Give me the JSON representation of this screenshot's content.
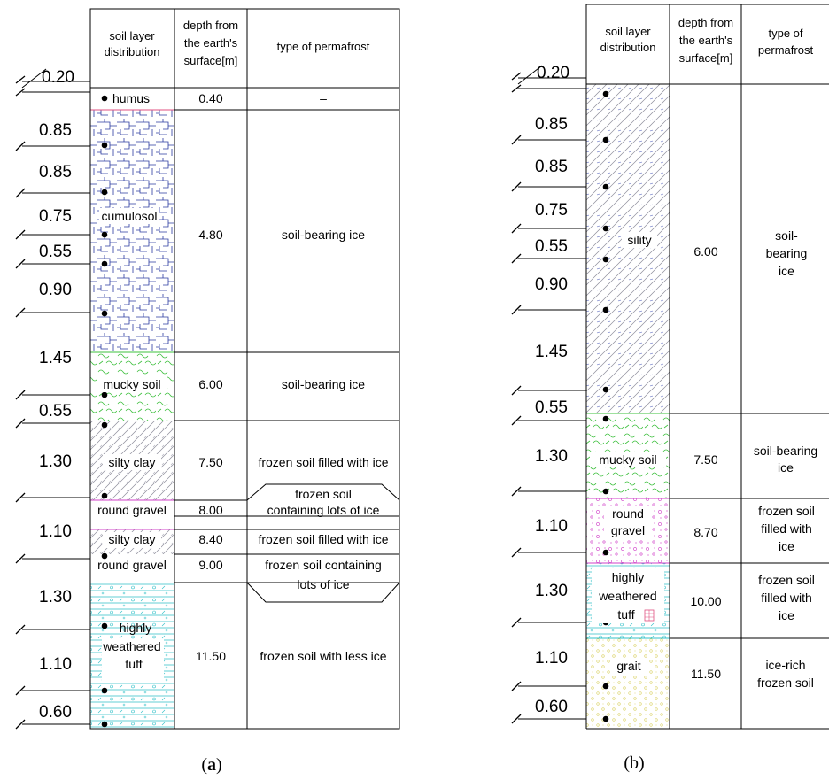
{
  "panel_a": {
    "caption_open": "(",
    "caption_letter": "a",
    "caption_close": ")",
    "headers": {
      "soil_line1": "soil layer",
      "soil_line2": "distribution",
      "depth_line1": "depth from",
      "depth_line2": "the earth's",
      "depth_line3": "surface[m]",
      "type": "type of permafrost"
    },
    "thicknesses": [
      "0.20",
      "0.85",
      "0.85",
      "0.75",
      "0.55",
      "0.90",
      "1.45",
      "0.55",
      "1.30",
      "1.10",
      "1.30",
      "1.10",
      "0.60"
    ],
    "layers": [
      {
        "name": "humus",
        "depth": "0.40",
        "type": "–"
      },
      {
        "name": "cumulosol",
        "depth": "4.80",
        "type": "soil-bearing ice"
      },
      {
        "name": "mucky soil",
        "depth": "6.00",
        "type": "soil-bearing ice"
      },
      {
        "name": "silty clay",
        "depth": "7.50",
        "type": "frozen soil filled with ice"
      },
      {
        "name": "round gravel",
        "depth": "8.00",
        "type_line1": "frozen soil",
        "type_line2": "containing lots of ice"
      },
      {
        "name": "silty clay",
        "depth": "8.40",
        "type": "frozen soil filled with ice"
      },
      {
        "name": "round gravel",
        "depth": "9.00",
        "type_line1": "frozen soil containing",
        "type_line2": "lots of ice"
      },
      {
        "name_line1": "highly",
        "name_line2": "weathered",
        "name_line3": "tuff",
        "depth": "11.50",
        "type": "frozen soil with less ice"
      }
    ]
  },
  "panel_b": {
    "caption": "(b)",
    "headers": {
      "soil_line1": "soil layer",
      "soil_line2": "distribution",
      "depth_line1": "depth from",
      "depth_line2": "the earth's",
      "depth_line3": "surface[m]",
      "type_line1": "type of",
      "type_line2": "permafrost"
    },
    "thicknesses": [
      "0.20",
      "0.85",
      "0.85",
      "0.75",
      "0.55",
      "0.90",
      "1.45",
      "0.55",
      "1.30",
      "1.10",
      "1.30",
      "1.10",
      "0.60"
    ],
    "layers": [
      {
        "name": "sility",
        "depth": "6.00",
        "type_line1": "soil-",
        "type_line2": "bearing",
        "type_line3": "ice"
      },
      {
        "name": "mucky soil",
        "depth": "7.50",
        "type_line1": "soil-bearing",
        "type_line2": "ice"
      },
      {
        "name_line1": "round",
        "name_line2": "gravel",
        "depth": "8.70",
        "type_line1": "frozen soil",
        "type_line2": "filled with",
        "type_line3": "ice"
      },
      {
        "name_line1": "highly",
        "name_line2": "weathered",
        "name_line3": "tuff",
        "depth": "10.00",
        "type_line1": "frozen soil",
        "type_line2": "filled with",
        "type_line3": "ice"
      },
      {
        "name": "grait",
        "depth": "11.50",
        "type_line1": "ice-rich",
        "type_line2": "frozen soil"
      }
    ]
  },
  "colors": {
    "cumulosol": "#2a3aa0",
    "mucky": "#3ec03e",
    "silty": "#9a9aa8",
    "gravel": "#d040c8",
    "tuff": "#30c0c8",
    "grait": "#e8e070",
    "humus_line": "#e05080"
  }
}
